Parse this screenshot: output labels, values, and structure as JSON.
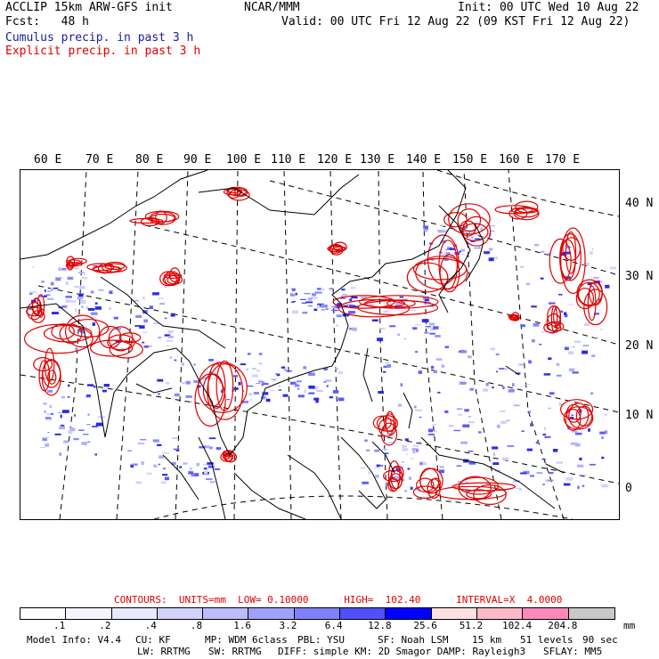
{
  "header": {
    "model_title": "ACCLIP 15km ARW-GFS init",
    "forecast_label": "Fcst:   48 h",
    "center": "NCAR/MMM",
    "init": "Init: 00 UTC Wed 10 Aug 22",
    "valid": "Valid: 00 UTC Fri 12 Aug 22 (09 KST Fri 12 Aug 22)",
    "legend_cumulus": "Cumulus precip. in past 3 h",
    "legend_explicit": "Explicit precip. in past 3 h"
  },
  "map": {
    "lon_labels": [
      "60 E",
      "70 E",
      "80 E",
      "90 E",
      "100 E",
      "110 E",
      "120 E",
      "130 E",
      "140 E",
      "150 E",
      "160 E",
      "170 E"
    ],
    "lat_labels": [
      "40 N",
      "30 N",
      "20 N",
      "10 N",
      "0"
    ],
    "colors": {
      "cumulus": "#2a2ae8",
      "explicit": "#e00000",
      "coast": "#000000",
      "grid": "#000000"
    }
  },
  "contours": {
    "text": "CONTOURS:  UNITS=mm  LOW= 0.10000      HIGH=  102.40      INTERVAL=X  4.0000"
  },
  "colorbar": {
    "colors": [
      "#ffffff",
      "#f4f4ff",
      "#e8e8ff",
      "#d2d2ff",
      "#bcbcff",
      "#a0a0ff",
      "#8080ff",
      "#5050ff",
      "#0000ff",
      "#ffe0e0",
      "#ffb8c8",
      "#ff88b8",
      "#c8c8c8",
      "#a0a0a0",
      "#303030",
      "#d8a8ff"
    ],
    "ticks": [
      ".1",
      ".2",
      ".4",
      ".8",
      "1.6",
      "3.2",
      "6.4",
      "12.8",
      "25.6",
      "51.2",
      "102.4",
      "204.8"
    ],
    "units": "mm"
  },
  "footer": {
    "line1_a": "Model Info: V4.4",
    "line1_b": "CU: KF",
    "line1_c": "MP: WDM 6class",
    "line1_d": "PBL: YSU",
    "line1_e": "SF: Noah LSM",
    "line1_f": "15 km",
    "line1_g": "51 levels",
    "line1_h": "90 sec",
    "line2_a": "LW: RRTMG",
    "line2_b": "SW: RRTMG",
    "line2_c": "DIFF: simple KM: 2D Smagor DAMP: Rayleigh3",
    "line2_d": "SFLAY: MM5"
  }
}
